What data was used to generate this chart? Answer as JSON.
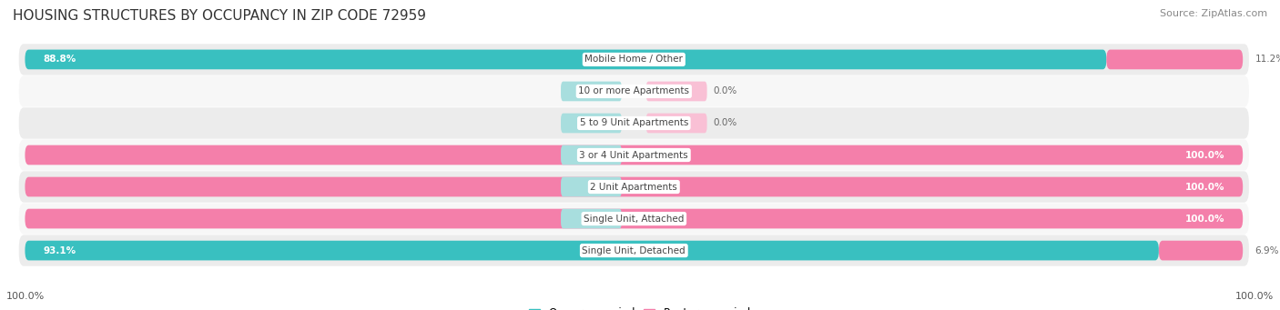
{
  "title": "HOUSING STRUCTURES BY OCCUPANCY IN ZIP CODE 72959",
  "source": "Source: ZipAtlas.com",
  "categories": [
    "Single Unit, Detached",
    "Single Unit, Attached",
    "2 Unit Apartments",
    "3 or 4 Unit Apartments",
    "5 to 9 Unit Apartments",
    "10 or more Apartments",
    "Mobile Home / Other"
  ],
  "owner_pct": [
    93.1,
    0.0,
    0.0,
    0.0,
    0.0,
    0.0,
    88.8
  ],
  "renter_pct": [
    6.9,
    100.0,
    100.0,
    100.0,
    0.0,
    0.0,
    11.2
  ],
  "owner_color": "#39c0c0",
  "renter_color": "#f47faa",
  "owner_light": "#a8dede",
  "renter_light": "#f9c0d5",
  "row_bg_even": "#ececec",
  "row_bg_odd": "#f7f7f7",
  "title_fontsize": 11,
  "source_fontsize": 8,
  "label_fontsize": 7.5,
  "bar_label_fontsize": 7.5,
  "legend_fontsize": 8.5,
  "axis_label_fontsize": 8,
  "background_color": "#ffffff",
  "left_axis_label": "100.0%",
  "right_axis_label": "100.0%"
}
